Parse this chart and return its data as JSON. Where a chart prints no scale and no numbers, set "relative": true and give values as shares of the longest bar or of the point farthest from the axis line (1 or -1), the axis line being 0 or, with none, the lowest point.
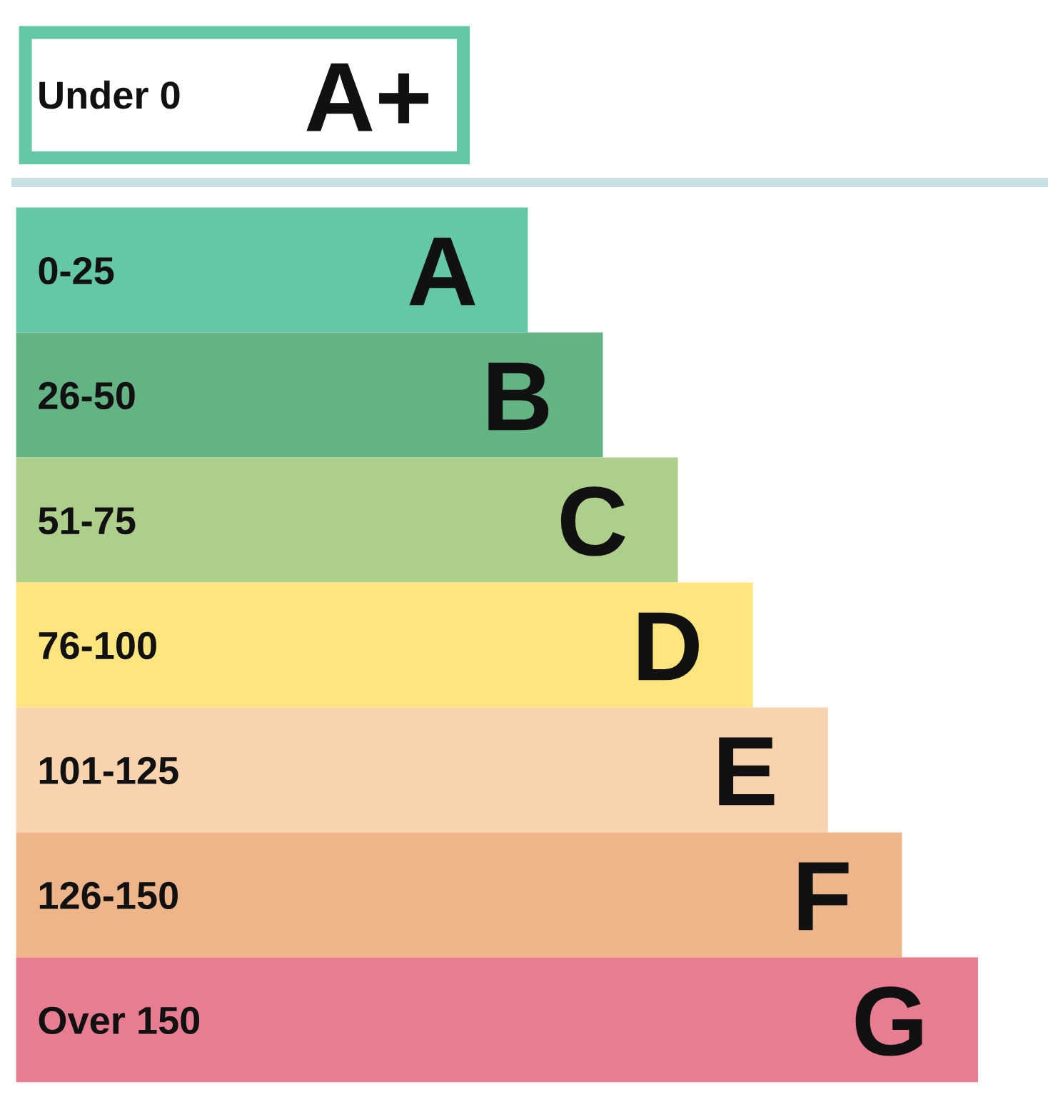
{
  "chart_data": {
    "type": "bar",
    "orientation": "horizontal",
    "relative": true,
    "categories": [
      "0-25",
      "26-50",
      "51-75",
      "76-100",
      "101-125",
      "126-150",
      "Over 150"
    ],
    "values": [
      0.532,
      0.61,
      0.688,
      0.766,
      0.844,
      0.921,
      1
    ],
    "colors": [
      "#63c8a3",
      "#64b385",
      "#aece8c",
      "#fee57e",
      "#f9d2ae",
      "#eeb58a",
      "#e87d91"
    ],
    "annotations": [
      "Under 0",
      "A+",
      {
        "text": "A",
        "x": 0.532,
        "y": "0-25"
      },
      {
        "text": "B",
        "x": 0.61,
        "y": "26-50"
      },
      {
        "text": "C",
        "x": 0.688,
        "y": "51-75"
      },
      {
        "text": "D",
        "x": 0.766,
        "y": "76-100"
      },
      {
        "text": "E",
        "x": 0.844,
        "y": "101-125"
      },
      {
        "text": "F",
        "x": 0.921,
        "y": "126-150"
      },
      {
        "text": "G",
        "x": 1,
        "y": "Over 150"
      }
    ]
  }
}
